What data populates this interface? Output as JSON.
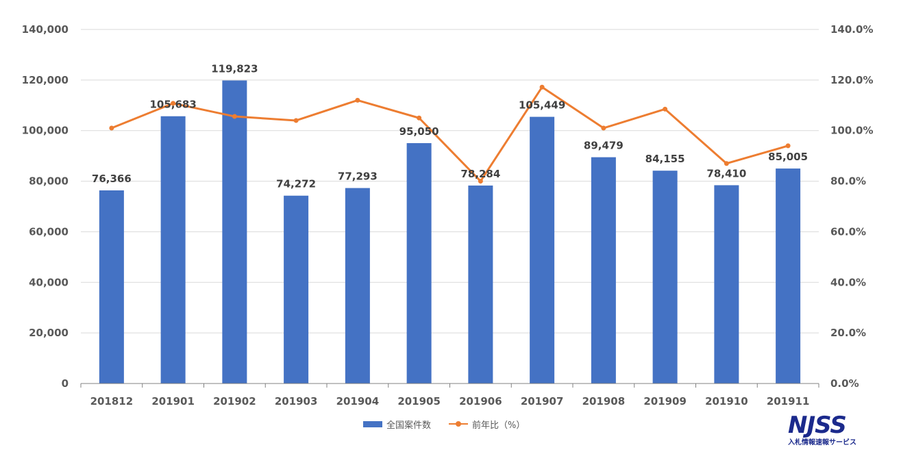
{
  "chart_data": {
    "type": "bar",
    "categories": [
      "201812",
      "201901",
      "201902",
      "201903",
      "201904",
      "201905",
      "201906",
      "201907",
      "201908",
      "201909",
      "201910",
      "201911"
    ],
    "series": [
      {
        "name": "全国案件数",
        "type": "bar",
        "axis": "left",
        "color": "#4472c4",
        "values": [
          76366,
          105683,
          119823,
          74272,
          77293,
          95050,
          78284,
          105449,
          89479,
          84155,
          78410,
          85005
        ],
        "labels": [
          "76,366",
          "105,683",
          "119,823",
          "74,272",
          "77,293",
          "95,050",
          "78,284",
          "105,449",
          "89,479",
          "84,155",
          "78,410",
          "85,005"
        ]
      },
      {
        "name": "前年比（%）",
        "type": "line",
        "axis": "right",
        "color": "#ed7d31",
        "values": [
          101.0,
          110.8,
          105.6,
          104.0,
          112.0,
          105.0,
          80.0,
          117.2,
          101.0,
          108.5,
          87.0,
          94.0
        ]
      }
    ],
    "ylim_left": [
      0,
      140000
    ],
    "ylim_right": [
      0,
      140
    ],
    "yticks_left": [
      "0",
      "20,000",
      "40,000",
      "60,000",
      "80,000",
      "100,000",
      "120,000",
      "140,000"
    ],
    "yticks_right": [
      "0.0%",
      "20.0%",
      "40.0%",
      "60.0%",
      "80.0%",
      "100.0%",
      "120.0%",
      "140.0%"
    ],
    "grid": true,
    "legend": "bottom"
  },
  "logo": {
    "mark": "NJSS",
    "sub": "入札情報速報サービス"
  }
}
